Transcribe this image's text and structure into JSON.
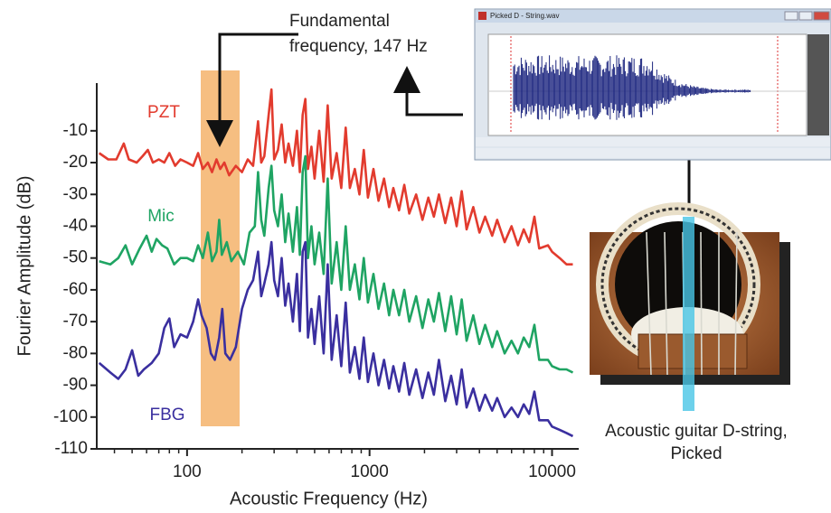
{
  "chart_data": {
    "type": "line",
    "xlabel": "Acoustic Frequency (Hz)",
    "ylabel": "Fourier Amplitude (dB)",
    "xscale": "log",
    "xlim": [
      32,
      14000
    ],
    "ylim": [
      -110,
      5
    ],
    "xticks": [
      100,
      1000,
      10000
    ],
    "xminorticks": [
      40,
      50,
      60,
      70,
      80,
      90,
      200,
      300,
      400,
      500,
      600,
      700,
      800,
      900,
      2000,
      3000,
      4000,
      5000,
      6000,
      7000,
      8000,
      9000
    ],
    "yticks": [
      -10,
      -20,
      -30,
      -40,
      -50,
      -60,
      -70,
      -80,
      -90,
      -100,
      -110
    ],
    "series": [
      {
        "name": "PZT",
        "color": "#e23b2e",
        "x": [
          33,
          37,
          41,
          45,
          48,
          53,
          57,
          61,
          65,
          70,
          75,
          80,
          86,
          92,
          100,
          108,
          115,
          122,
          130,
          137,
          145,
          152,
          160,
          170,
          185,
          200,
          215,
          230,
          245,
          255,
          265,
          280,
          290,
          300,
          315,
          330,
          345,
          360,
          380,
          400,
          415,
          430,
          445,
          460,
          480,
          500,
          530,
          560,
          590,
          620,
          660,
          700,
          740,
          780,
          830,
          880,
          930,
          980,
          1050,
          1120,
          1200,
          1280,
          1350,
          1450,
          1550,
          1650,
          1800,
          1950,
          2100,
          2250,
          2400,
          2600,
          2800,
          3000,
          3200,
          3400,
          3700,
          4000,
          4300,
          4700,
          5000,
          5500,
          6000,
          6500,
          7000,
          7500,
          8000,
          8500,
          9500,
          10000,
          11000,
          12000,
          13000
        ],
        "values": [
          -17,
          -19,
          -19,
          -14,
          -19,
          -20,
          -18,
          -16,
          -20,
          -19,
          -20,
          -17,
          -21,
          -19,
          -20,
          -21,
          -17,
          -22,
          -20,
          -23,
          -19,
          -22,
          -20,
          -24,
          -21,
          -23,
          -19,
          -21,
          -7,
          -20,
          -18,
          -5,
          3,
          -19,
          -16,
          -8,
          -20,
          -14,
          -21,
          -10,
          -23,
          -5,
          0,
          -22,
          -15,
          -25,
          -10,
          -26,
          -2,
          -25,
          -17,
          -28,
          -9,
          -28,
          -22,
          -30,
          -16,
          -31,
          -22,
          -32,
          -25,
          -34,
          -28,
          -35,
          -27,
          -36,
          -30,
          -38,
          -31,
          -37,
          -30,
          -39,
          -31,
          -40,
          -29,
          -41,
          -34,
          -42,
          -37,
          -43,
          -38,
          -45,
          -40,
          -46,
          -41,
          -45,
          -37,
          -47,
          -46,
          -48,
          -50,
          -52,
          -52
        ]
      },
      {
        "name": "Mic",
        "color": "#1fa463",
        "x": [
          33,
          38,
          42,
          46,
          50,
          55,
          60,
          64,
          68,
          73,
          78,
          85,
          92,
          100,
          108,
          115,
          122,
          130,
          137,
          145,
          150,
          155,
          165,
          175,
          190,
          205,
          220,
          235,
          245,
          255,
          265,
          280,
          290,
          300,
          315,
          330,
          345,
          360,
          380,
          400,
          415,
          430,
          445,
          460,
          480,
          500,
          530,
          560,
          590,
          620,
          660,
          700,
          740,
          780,
          830,
          880,
          930,
          980,
          1050,
          1120,
          1200,
          1280,
          1350,
          1450,
          1550,
          1650,
          1800,
          1950,
          2100,
          2250,
          2400,
          2600,
          2800,
          3000,
          3200,
          3400,
          3700,
          4000,
          4300,
          4700,
          5000,
          5500,
          6000,
          6500,
          7000,
          7500,
          8000,
          8500,
          9500,
          10000,
          11000,
          12000,
          13000
        ],
        "values": [
          -51,
          -52,
          -50,
          -46,
          -52,
          -47,
          -43,
          -48,
          -44,
          -46,
          -47,
          -52,
          -50,
          -50,
          -51,
          -46,
          -50,
          -42,
          -51,
          -48,
          -38,
          -49,
          -45,
          -51,
          -48,
          -52,
          -42,
          -40,
          -23,
          -38,
          -43,
          -28,
          -21,
          -35,
          -40,
          -30,
          -45,
          -36,
          -48,
          -34,
          -49,
          -23,
          -18,
          -50,
          -40,
          -52,
          -42,
          -55,
          -25,
          -58,
          -45,
          -60,
          -40,
          -60,
          -52,
          -63,
          -50,
          -64,
          -55,
          -66,
          -58,
          -68,
          -60,
          -68,
          -60,
          -70,
          -62,
          -72,
          -63,
          -70,
          -61,
          -73,
          -62,
          -74,
          -63,
          -76,
          -68,
          -77,
          -71,
          -78,
          -73,
          -80,
          -76,
          -80,
          -75,
          -78,
          -71,
          -82,
          -82,
          -84,
          -85,
          -85,
          -86
        ]
      },
      {
        "name": "FBG",
        "color": "#3a2f9f",
        "x": [
          33,
          38,
          42,
          46,
          50,
          54,
          58,
          64,
          70,
          75,
          80,
          85,
          92,
          100,
          108,
          115,
          120,
          128,
          135,
          142,
          150,
          156,
          162,
          172,
          185,
          200,
          215,
          230,
          245,
          255,
          265,
          280,
          290,
          300,
          315,
          330,
          345,
          360,
          380,
          400,
          415,
          430,
          445,
          460,
          480,
          500,
          530,
          560,
          590,
          620,
          660,
          700,
          740,
          780,
          830,
          880,
          930,
          980,
          1050,
          1120,
          1200,
          1280,
          1350,
          1450,
          1550,
          1650,
          1800,
          1950,
          2100,
          2250,
          2400,
          2600,
          2800,
          3000,
          3200,
          3400,
          3700,
          4000,
          4300,
          4700,
          5000,
          5500,
          6000,
          6500,
          7000,
          7500,
          8000,
          8500,
          9500,
          10000,
          11000,
          12000,
          13000
        ],
        "values": [
          -83,
          -86,
          -88,
          -85,
          -79,
          -87,
          -85,
          -83,
          -80,
          -72,
          -69,
          -78,
          -74,
          -75,
          -70,
          -63,
          -68,
          -72,
          -80,
          -82,
          -75,
          -66,
          -80,
          -82,
          -78,
          -66,
          -60,
          -57,
          -48,
          -62,
          -58,
          -52,
          -45,
          -57,
          -62,
          -50,
          -65,
          -58,
          -70,
          -55,
          -73,
          -48,
          -45,
          -75,
          -66,
          -77,
          -62,
          -80,
          -52,
          -82,
          -68,
          -84,
          -64,
          -86,
          -78,
          -88,
          -75,
          -89,
          -80,
          -90,
          -82,
          -91,
          -84,
          -92,
          -83,
          -93,
          -85,
          -94,
          -86,
          -93,
          -82,
          -95,
          -87,
          -96,
          -85,
          -97,
          -91,
          -98,
          -93,
          -98,
          -94,
          -100,
          -97,
          -100,
          -96,
          -99,
          -92,
          -101,
          -101,
          -103,
          -104,
          -105,
          -106
        ]
      }
    ],
    "annotation": {
      "lines": [
        "Fundamental",
        "frequency, 147 Hz"
      ]
    },
    "photo_caption": {
      "lines": [
        "Acoustic guitar D-string,",
        "Picked"
      ]
    },
    "inset": {
      "title": "Picked D - String.wav"
    }
  }
}
